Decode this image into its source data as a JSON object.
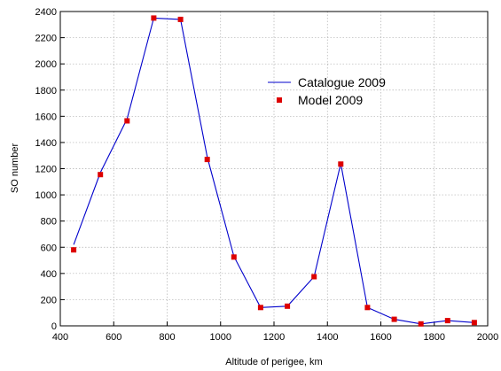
{
  "chart_data": {
    "type": "line",
    "xlabel": "Altitude of perigee, km",
    "ylabel": "SO number",
    "xlim": [
      400,
      2000
    ],
    "ylim": [
      0,
      2400
    ],
    "x_ticks": [
      "400",
      "600",
      "800",
      "1000",
      "1200",
      "1400",
      "1600",
      "1800",
      "2000"
    ],
    "y_ticks": [
      "0",
      "200",
      "400",
      "600",
      "800",
      "1000",
      "1200",
      "1400",
      "1600",
      "1800",
      "2000",
      "2200",
      "2400"
    ],
    "grid": true,
    "legend_position": "top-right",
    "series": [
      {
        "name": "Catalogue 2009",
        "kind": "line",
        "color": "#0000cc",
        "x": [
          450,
          550,
          650,
          750,
          850,
          950,
          1050,
          1150,
          1250,
          1350,
          1450,
          1550,
          1650,
          1750,
          1850,
          1950
        ],
        "y": [
          620,
          1170,
          1580,
          2350,
          2340,
          1290,
          530,
          140,
          150,
          375,
          1240,
          140,
          50,
          15,
          40,
          25
        ]
      },
      {
        "name": "Model 2009",
        "kind": "markers",
        "color": "#dd0000",
        "x": [
          450,
          550,
          650,
          750,
          850,
          950,
          1050,
          1150,
          1250,
          1350,
          1450,
          1550,
          1650,
          1750,
          1850,
          1950
        ],
        "y": [
          580,
          1155,
          1565,
          2350,
          2340,
          1270,
          525,
          140,
          150,
          375,
          1235,
          140,
          50,
          15,
          40,
          25
        ]
      }
    ]
  }
}
